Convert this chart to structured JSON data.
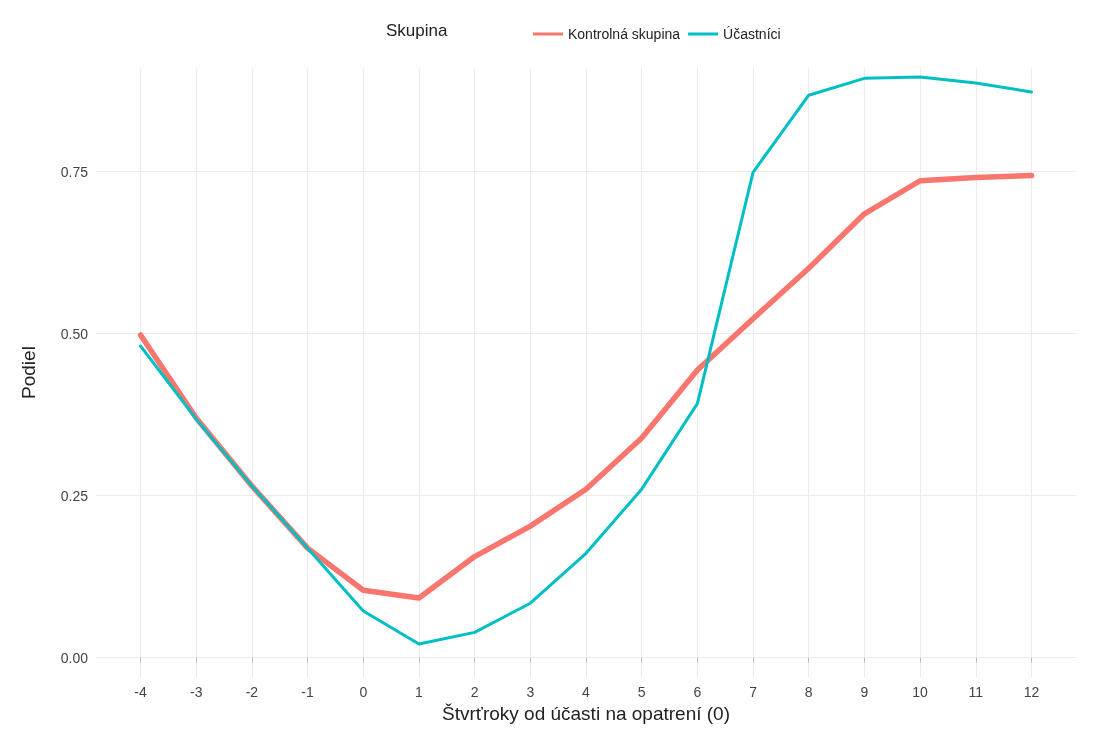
{
  "chart_data": {
    "type": "line",
    "xlabel": "Štvrťroky od účasti na opatrení (0)",
    "ylabel": "Podiel",
    "legend_title": "Skupina",
    "legend": "top",
    "x": [
      -4,
      -3,
      -2,
      -1,
      0,
      1,
      2,
      3,
      4,
      5,
      6,
      7,
      8,
      9,
      10,
      11,
      12
    ],
    "series": [
      {
        "name": "Kontrolná skupina",
        "color": "#f8766d",
        "values": [
          0.498,
          0.37,
          0.265,
          0.169,
          0.104,
          0.092,
          0.156,
          0.203,
          0.26,
          0.339,
          0.444,
          0.523,
          0.601,
          0.685,
          0.736,
          0.741,
          0.744
        ]
      },
      {
        "name": "Účastníci",
        "color": "#00bfc4",
        "values": [
          0.481,
          0.368,
          0.265,
          0.169,
          0.072,
          0.021,
          0.039,
          0.084,
          0.161,
          0.26,
          0.392,
          0.749,
          0.868,
          0.894,
          0.896,
          0.887,
          0.873
        ]
      }
    ],
    "xlim": [
      -4.8,
      12.8
    ],
    "xticks": [
      -4,
      -3,
      -2,
      -1,
      0,
      1,
      2,
      3,
      4,
      5,
      6,
      7,
      8,
      9,
      10,
      11,
      12
    ],
    "ylim": [
      -0.03,
      0.91
    ],
    "yticks": [
      {
        "value": 0,
        "label": "0.00"
      },
      {
        "value": 0.25,
        "label": "0.25"
      },
      {
        "value": 0.5,
        "label": "0.50"
      },
      {
        "value": 0.75,
        "label": "0.75"
      }
    ],
    "grid": true,
    "marker": "none",
    "line_style": "solid"
  }
}
